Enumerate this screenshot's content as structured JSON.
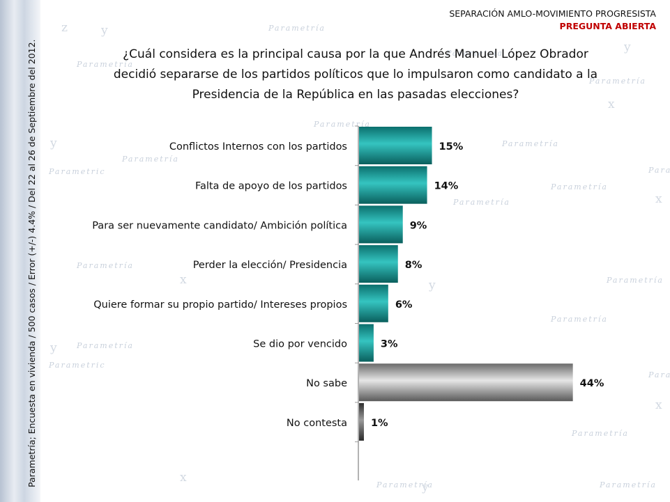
{
  "header": {
    "title": "SEPARACIÓN AMLO-MOVIMIENTO PROGRESISTA",
    "subtitle": "PREGUNTA ABIERTA"
  },
  "sidebar_note": "Parametría; Encuesta en vivienda / 500 casos / Error (+/-) 4.4% / Del 22 al 26 de Septiembre del 2012.",
  "question": "¿Cuál considera es la principal causa por la que Andrés Manuel López Obrador decidió separarse de los partidos políticos que lo impulsaron como candidato a la Presidencia de la República en las pasadas elecciones?",
  "colors": {
    "teal_bar": "#1aa3a0",
    "gray_bar": "#8f8f8f",
    "dark_bar": "#444444",
    "header_red": "#c00000"
  },
  "chart_data": {
    "type": "bar",
    "orientation": "horizontal",
    "categories": [
      "Conflictos Internos con los partidos",
      "Falta de apoyo de los partidos",
      "Para ser nuevamente candidato/ Ambición política",
      "Perder la elección/ Presidencia",
      "Quiere formar su propio partido/ Intereses propios",
      "Se dio por vencido",
      "No sabe",
      "No contesta"
    ],
    "values": [
      15,
      14,
      9,
      8,
      6,
      3,
      44,
      1
    ],
    "value_labels": [
      "15%",
      "14%",
      "9%",
      "8%",
      "6%",
      "3%",
      "44%",
      "1%"
    ],
    "bar_styles": [
      "teal",
      "teal",
      "teal",
      "teal",
      "teal",
      "teal",
      "gray",
      "dark"
    ],
    "xlim": [
      0,
      50
    ],
    "grid": false
  }
}
